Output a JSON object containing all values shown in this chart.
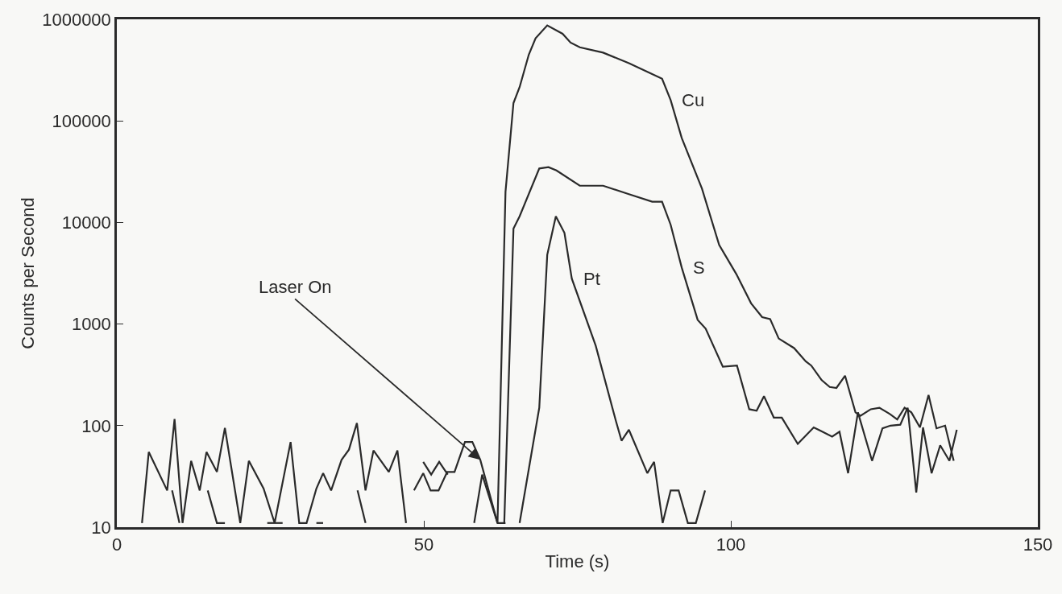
{
  "chart_data": {
    "type": "line",
    "xlabel": "Time (s)",
    "ylabel": "Counts per Second",
    "log": true,
    "xlim": [
      0,
      150
    ],
    "xticks": [
      0,
      50,
      100,
      150
    ],
    "ylim": [
      10,
      1000000
    ],
    "yticks": [
      10,
      100,
      1000,
      10000,
      100000,
      1000000
    ],
    "annotations": [
      {
        "text": "Laser On",
        "x": 59.2,
        "y": 46
      }
    ],
    "series": [
      {
        "name": "Cu",
        "color": "#2a2a2a",
        "x": [
          4.1,
          5.2,
          8.2,
          9.4,
          10.7,
          12.1,
          13.5,
          14.6,
          16.3,
          17.6,
          20.1,
          21.5,
          23.9,
          25.7,
          28.3,
          29.7,
          30.9,
          32.5,
          33.6,
          34.9,
          36.6,
          37.8,
          39.1,
          40.5,
          41.8,
          44.3,
          45.7,
          47.1,
          47.8,
          48.4,
          49.9,
          51.1,
          52.4,
          53.8,
          55.0,
          56.7,
          57.9,
          59.2,
          62.0,
          63.3,
          64.6,
          65.6,
          67.1,
          68.2,
          70.1,
          72.6,
          73.9,
          75.4,
          79.2,
          83.4,
          86.9,
          88.8,
          90.2,
          92.0,
          95.3,
          98.1,
          100.9,
          103.3,
          105.1,
          106.4,
          107.8,
          110.3,
          112.2,
          113.1,
          114.8,
          116.1,
          117.2,
          118.6,
          120.3,
          121.1,
          122.8,
          124.2,
          125.9,
          127.1,
          128.3,
          129.4,
          130.8,
          132.2,
          133.5,
          134.9,
          136.3
        ],
        "values": [
          11,
          55,
          23,
          116,
          11,
          45,
          23,
          55,
          35,
          95,
          11,
          45,
          24,
          11,
          69,
          11,
          11,
          24,
          34,
          23,
          46,
          58,
          106,
          23,
          57,
          35,
          57,
          11,
          null,
          23,
          34,
          23,
          23,
          35,
          35,
          69,
          69,
          46,
          11,
          20000,
          150000,
          215000,
          450000,
          650000,
          870000,
          720000,
          590000,
          530000,
          470000,
          370000,
          295000,
          260000,
          160000,
          68000,
          21500,
          6000,
          3100,
          1600,
          1170,
          1120,
          720,
          580,
          430,
          390,
          280,
          240,
          235,
          310,
          135,
          125,
          145,
          150,
          130,
          115,
          150,
          135,
          96,
          200,
          94,
          100,
          45
        ]
      },
      {
        "name": "S",
        "color": "#2a2a2a",
        "x": [
          9.0,
          10.2,
          12.0,
          14.8,
          16.3,
          17.6,
          20.0,
          24.5,
          27.0,
          30.0,
          32.5,
          33.6,
          36.0,
          39.2,
          40.5,
          45.0,
          49.9,
          51.2,
          52.5,
          53.9,
          58.0,
          63.1,
          64.6,
          65.6,
          68.8,
          70.3,
          71.6,
          75.4,
          79.2,
          83.4,
          87.2,
          88.8,
          90.2,
          92.0,
          94.6,
          95.9,
          98.7,
          101.0,
          103.0,
          104.2,
          105.4,
          107.0,
          108.3,
          110.9,
          113.5,
          116.5,
          117.7,
          119.1,
          120.7,
          123.0,
          124.7,
          126.0,
          127.6,
          128.8,
          130.2,
          131.3,
          132.7,
          134.1,
          135.6,
          136.8
        ],
        "values": [
          23,
          11,
          null,
          23,
          11,
          11,
          null,
          11,
          11,
          null,
          11,
          11,
          null,
          23,
          11,
          null,
          44,
          33,
          44,
          33,
          null,
          11,
          8700,
          11500,
          34000,
          35000,
          32500,
          23000,
          23000,
          19000,
          16000,
          16000,
          9500,
          3600,
          1100,
          900,
          380,
          390,
          145,
          140,
          195,
          120,
          120,
          66,
          96,
          78,
          87,
          34,
          135,
          45,
          94,
          100,
          102,
          150,
          22,
          96,
          34,
          64,
          45,
          91
        ]
      },
      {
        "name": "Pt",
        "color": "#2a2a2a",
        "x": [
          58.2,
          59.5,
          62.0,
          63.3,
          64.5,
          65.6,
          68.8,
          70.1,
          71.5,
          72.9,
          74.1,
          78.0,
          81.3,
          82.2,
          83.4,
          86.4,
          87.5,
          88.9,
          90.2,
          91.5,
          93.0,
          94.3,
          95.8
        ],
        "values": [
          11,
          33,
          11,
          11,
          null,
          11,
          150,
          4800,
          11500,
          7900,
          2800,
          610,
          110,
          71,
          91,
          34,
          44,
          11,
          23,
          23,
          11,
          11,
          23
        ]
      }
    ]
  }
}
